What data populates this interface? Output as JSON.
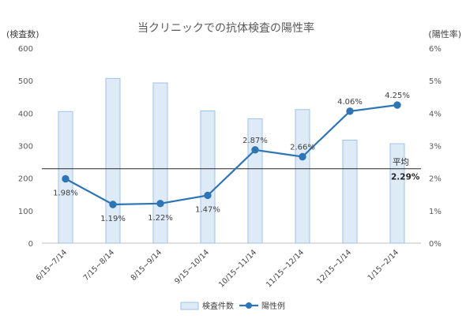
{
  "chart_data": {
    "type": "bar",
    "title": "当クリニックでの抗体検査の陽性率",
    "left_axis_label": "(検査数)",
    "right_axis_label": "(陽性率)",
    "categories": [
      "6/15~7/14",
      "7/15~8/14",
      "8/15~9/14",
      "9/15~10/14",
      "10/15~11/14",
      "11/15~12/14",
      "12/15~1/14",
      "1/15~2/14"
    ],
    "left_ylim": [
      0,
      600
    ],
    "left_ticks": [
      "0",
      "100",
      "200",
      "300",
      "400",
      "500",
      "600"
    ],
    "right_ylim": [
      0,
      6
    ],
    "right_ticks": [
      "0%",
      "1%",
      "2%",
      "3%",
      "4%",
      "5%",
      "6%"
    ],
    "series": [
      {
        "name": "検査件数",
        "kind": "bar",
        "axis": "left",
        "values": [
          405,
          507,
          493,
          407,
          383,
          411,
          317,
          306
        ]
      },
      {
        "name": "陽性例",
        "kind": "line",
        "axis": "right",
        "values": [
          1.98,
          1.19,
          1.22,
          1.47,
          2.87,
          2.66,
          4.06,
          4.25
        ],
        "labels": [
          "1.98%",
          "1.19%",
          "1.22%",
          "1.47%",
          "2.87%",
          "2.66%",
          "4.06%",
          "4.25%"
        ]
      }
    ],
    "average": {
      "label": "平均",
      "value": 2.29,
      "value_label": "2.29%"
    },
    "grid": false,
    "legend_position": "bottom"
  },
  "colors": {
    "bar_fill": "#DEEBF7",
    "bar_stroke": "#9DC3E6",
    "line": "#2E75B6",
    "avg_line": "#262626",
    "axis": "#BFBFBF"
  }
}
